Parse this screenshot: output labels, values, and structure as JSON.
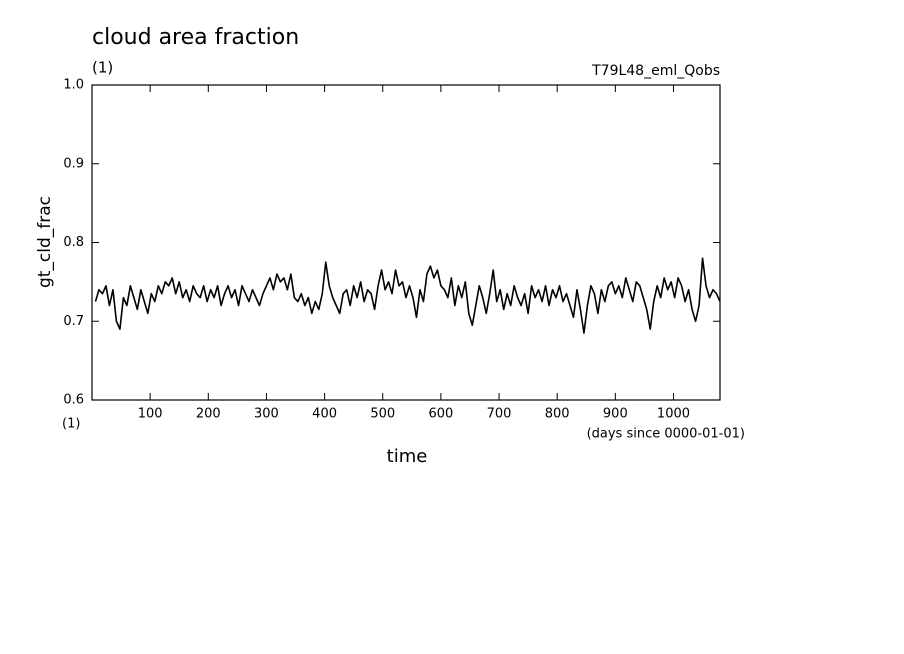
{
  "chart_data": {
    "type": "line",
    "title": "cloud area fraction",
    "y_unit": "(1)",
    "experiment": "T79L48_eml_Qobs",
    "y_label": "gt_cld_frac",
    "x_unit": "(1)",
    "x_units_note": "(days since 0000-01-01)",
    "x_label": "time",
    "xlim": [
      0,
      1080
    ],
    "ylim": [
      0.6,
      1.0
    ],
    "xticks": [
      100,
      200,
      300,
      400,
      500,
      600,
      700,
      800,
      900,
      1000
    ],
    "yticks": [
      0.6,
      0.7,
      0.8,
      0.9,
      {
        "value": 1.0,
        "label": "1.0"
      }
    ],
    "x": [
      6,
      12,
      18,
      24,
      30,
      36,
      42,
      48,
      54,
      60,
      66,
      72,
      78,
      84,
      90,
      96,
      102,
      108,
      114,
      120,
      126,
      132,
      138,
      144,
      150,
      156,
      162,
      168,
      174,
      180,
      186,
      192,
      198,
      204,
      210,
      216,
      222,
      228,
      234,
      240,
      246,
      252,
      258,
      264,
      270,
      276,
      282,
      288,
      294,
      300,
      306,
      312,
      318,
      324,
      330,
      336,
      342,
      348,
      354,
      360,
      366,
      372,
      378,
      384,
      390,
      396,
      402,
      408,
      414,
      420,
      426,
      432,
      438,
      444,
      450,
      456,
      462,
      468,
      474,
      480,
      486,
      492,
      498,
      504,
      510,
      516,
      522,
      528,
      534,
      540,
      546,
      552,
      558,
      564,
      570,
      576,
      582,
      588,
      594,
      600,
      606,
      612,
      618,
      624,
      630,
      636,
      642,
      648,
      654,
      660,
      666,
      672,
      678,
      684,
      690,
      696,
      702,
      708,
      714,
      720,
      726,
      732,
      738,
      744,
      750,
      756,
      762,
      768,
      774,
      780,
      786,
      792,
      798,
      804,
      810,
      816,
      822,
      828,
      834,
      840,
      846,
      852,
      858,
      864,
      870,
      876,
      882,
      888,
      894,
      900,
      906,
      912,
      918,
      924,
      930,
      936,
      942,
      948,
      954,
      960,
      966,
      972,
      978,
      984,
      990,
      996,
      1002,
      1008,
      1014,
      1020,
      1026,
      1032,
      1038,
      1044,
      1050,
      1056,
      1062,
      1068,
      1074,
      1080
    ],
    "series": [
      {
        "color": "#000000",
        "values": [
          0.725,
          0.74,
          0.735,
          0.745,
          0.72,
          0.74,
          0.7,
          0.69,
          0.73,
          0.72,
          0.745,
          0.73,
          0.715,
          0.74,
          0.725,
          0.71,
          0.735,
          0.725,
          0.745,
          0.735,
          0.75,
          0.745,
          0.755,
          0.735,
          0.75,
          0.73,
          0.74,
          0.725,
          0.745,
          0.735,
          0.73,
          0.745,
          0.725,
          0.74,
          0.73,
          0.745,
          0.72,
          0.735,
          0.745,
          0.73,
          0.74,
          0.72,
          0.745,
          0.735,
          0.725,
          0.74,
          0.73,
          0.72,
          0.735,
          0.745,
          0.755,
          0.74,
          0.76,
          0.75,
          0.755,
          0.74,
          0.76,
          0.73,
          0.725,
          0.735,
          0.72,
          0.73,
          0.71,
          0.725,
          0.715,
          0.735,
          0.775,
          0.745,
          0.73,
          0.72,
          0.71,
          0.735,
          0.74,
          0.72,
          0.745,
          0.73,
          0.75,
          0.725,
          0.74,
          0.735,
          0.715,
          0.745,
          0.765,
          0.74,
          0.75,
          0.735,
          0.765,
          0.745,
          0.75,
          0.73,
          0.745,
          0.73,
          0.705,
          0.74,
          0.725,
          0.76,
          0.77,
          0.755,
          0.765,
          0.745,
          0.74,
          0.73,
          0.755,
          0.72,
          0.745,
          0.73,
          0.75,
          0.71,
          0.695,
          0.72,
          0.745,
          0.73,
          0.71,
          0.735,
          0.765,
          0.725,
          0.74,
          0.715,
          0.735,
          0.72,
          0.745,
          0.73,
          0.72,
          0.735,
          0.71,
          0.745,
          0.73,
          0.74,
          0.725,
          0.745,
          0.72,
          0.74,
          0.73,
          0.745,
          0.725,
          0.735,
          0.72,
          0.705,
          0.74,
          0.715,
          0.685,
          0.72,
          0.745,
          0.735,
          0.71,
          0.74,
          0.725,
          0.745,
          0.75,
          0.735,
          0.745,
          0.73,
          0.755,
          0.74,
          0.725,
          0.75,
          0.745,
          0.73,
          0.715,
          0.69,
          0.725,
          0.745,
          0.73,
          0.755,
          0.74,
          0.75,
          0.73,
          0.755,
          0.745,
          0.725,
          0.74,
          0.715,
          0.7,
          0.72,
          0.78,
          0.745,
          0.73,
          0.74,
          0.735,
          0.725
        ]
      }
    ]
  }
}
